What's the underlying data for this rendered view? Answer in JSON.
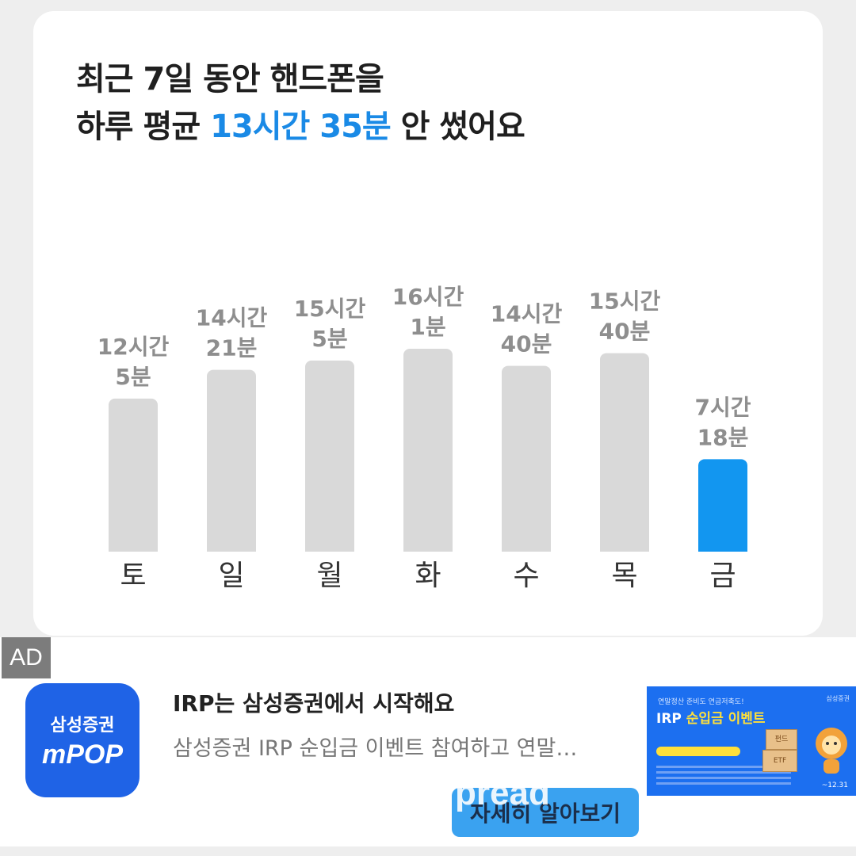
{
  "headline": {
    "line1": "최근 7일 동안 핸드폰을",
    "line2_prefix": "하루 평균 ",
    "line2_highlight": "13시간 35분",
    "line2_suffix": " 안 썼어요"
  },
  "colors": {
    "accent": "#1a8ae6",
    "bar_gray": "#d9d9d9",
    "bar_highlight": "#1296f0",
    "label_gray": "#8e8e8e"
  },
  "chart_data": {
    "type": "bar",
    "categories": [
      "토",
      "일",
      "월",
      "화",
      "수",
      "목",
      "금"
    ],
    "values": [
      12.083,
      14.35,
      15.083,
      16.017,
      14.667,
      15.667,
      7.3
    ],
    "value_labels": [
      [
        "12시간",
        "5분"
      ],
      [
        "14시간",
        "21분"
      ],
      [
        "15시간",
        "5분"
      ],
      [
        "16시간",
        "1분"
      ],
      [
        "14시간",
        "40분"
      ],
      [
        "15시간",
        "40분"
      ],
      [
        "7시간",
        "18분"
      ]
    ],
    "highlight_index": 6,
    "title": "",
    "xlabel": "",
    "ylabel": ""
  },
  "ad": {
    "badge": "AD",
    "app_icon_company": "삼성증권",
    "app_icon_brand": "mPOP",
    "title": "IRP는 삼성증권에서 시작해요",
    "description": "삼성증권 IRP 순입금 이벤트 참여하고 연말…",
    "cta_label": "자세히 알아보기",
    "banner": {
      "top_text": "연말정산 준비도 연금저축도!",
      "corner_text": "삼성증권",
      "event_prefix": "IRP ",
      "event_highlight": "순입금 이벤트",
      "box_fund": "펀드",
      "box_etf": "ETF",
      "date": "~12.31"
    }
  },
  "watermark": "pread"
}
